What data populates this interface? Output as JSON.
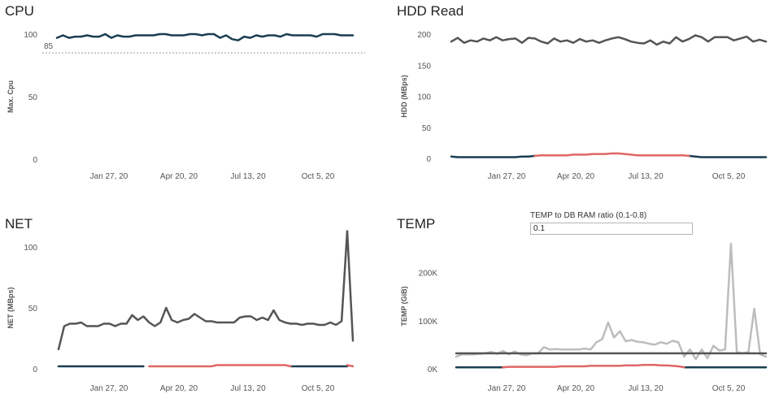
{
  "colors": {
    "navy": "#1a3d52",
    "gray": "#555555",
    "red": "#e06666",
    "lightgray": "#bdbdbd",
    "ref": "#999999"
  },
  "parameter": {
    "label": "TEMP to DB RAM ratio (0.1-0.8)",
    "value": "0.1"
  },
  "chart_data": [
    {
      "type": "line",
      "title": "CPU",
      "ylabel": "Max. Cpu",
      "ylim": [
        0,
        100
      ],
      "yticks": [
        "100",
        "50",
        "0"
      ],
      "xticks": [
        "Jan 27, 20",
        "Apr 20, 20",
        "Jul 13, 20",
        "Oct 5, 20"
      ],
      "reference_line": {
        "value": 85,
        "label": "85"
      },
      "series": [
        {
          "color": "navy",
          "values": [
            97,
            99,
            97,
            98,
            98,
            99,
            98,
            98,
            100,
            97,
            99,
            98,
            98,
            99,
            99,
            99,
            99,
            100,
            100,
            99,
            99,
            99,
            100,
            100,
            99,
            100,
            100,
            97,
            99,
            96,
            95,
            98,
            97,
            99,
            98,
            99,
            99,
            98,
            100,
            99,
            99,
            99,
            99,
            98,
            100,
            100,
            100,
            99,
            99,
            99
          ]
        }
      ]
    },
    {
      "type": "line",
      "title": "HDD Read",
      "ylabel": "HDD (MBps)",
      "ylim": [
        0,
        200
      ],
      "yticks": [
        "200",
        "150",
        "100",
        "50",
        "0"
      ],
      "xticks": [
        "Jan 27, 20",
        "Apr 20, 20",
        "Jul 13, 20",
        "Oct 5, 20"
      ],
      "series": [
        {
          "color": "gray",
          "values": [
            188,
            194,
            186,
            190,
            188,
            193,
            190,
            195,
            190,
            192,
            193,
            186,
            194,
            193,
            188,
            185,
            193,
            188,
            190,
            186,
            192,
            188,
            190,
            186,
            190,
            193,
            195,
            192,
            188,
            186,
            185,
            190,
            183,
            188,
            185,
            195,
            188,
            192,
            198,
            195,
            188,
            195,
            195,
            195,
            190,
            193,
            196,
            188,
            191,
            188
          ]
        },
        {
          "color": "navy",
          "values": [
            3,
            2,
            2,
            2,
            2,
            2,
            2,
            2,
            2,
            2,
            2,
            3,
            3,
            4,
            null,
            null,
            null,
            null,
            null,
            null,
            null,
            null,
            null,
            null,
            null,
            null,
            null,
            null,
            null,
            null,
            null,
            null,
            null,
            null,
            null,
            null,
            null,
            4,
            3,
            2,
            2,
            2,
            2,
            2,
            2,
            2,
            2,
            2,
            2,
            2
          ]
        },
        {
          "color": "red",
          "values": [
            null,
            null,
            null,
            null,
            null,
            null,
            null,
            null,
            null,
            null,
            null,
            null,
            null,
            4,
            5,
            5,
            5,
            5,
            5,
            6,
            6,
            6,
            7,
            7,
            7,
            8,
            8,
            7,
            6,
            5,
            5,
            5,
            5,
            5,
            5,
            5,
            5,
            4,
            null,
            null,
            null,
            null,
            null,
            null,
            null,
            null,
            null,
            null,
            null,
            null
          ]
        }
      ]
    },
    {
      "type": "line",
      "title": "NET",
      "ylabel": "NET (MBps)",
      "ylim": [
        0,
        100
      ],
      "yticks": [
        "100",
        "50",
        "0"
      ],
      "xticks": [
        "Jan 27, 20",
        "Apr 20, 20",
        "Jul 13, 20",
        "Oct 5, 20"
      ],
      "series": [
        {
          "color": "gray",
          "values": [
            16,
            35,
            37,
            37,
            38,
            35,
            35,
            35,
            37,
            37,
            35,
            37,
            37,
            44,
            40,
            43,
            38,
            35,
            38,
            50,
            40,
            38,
            40,
            41,
            45,
            42,
            39,
            39,
            38,
            38,
            38,
            38,
            42,
            43,
            43,
            40,
            42,
            40,
            48,
            40,
            38,
            37,
            37,
            36,
            37,
            37,
            36,
            36,
            38,
            36,
            39,
            113,
            23
          ]
        },
        {
          "color": "navy",
          "values": [
            2,
            2,
            2,
            2,
            2,
            2,
            2,
            2,
            2,
            2,
            2,
            2,
            2,
            2,
            2,
            2,
            null,
            null,
            null,
            null,
            null,
            null,
            null,
            null,
            null,
            null,
            null,
            null,
            null,
            null,
            null,
            null,
            null,
            null,
            null,
            null,
            null,
            null,
            null,
            null,
            null,
            2,
            2,
            2,
            2,
            2,
            2,
            2,
            2,
            2,
            2,
            2,
            null
          ]
        },
        {
          "color": "red",
          "values": [
            null,
            null,
            null,
            null,
            null,
            null,
            null,
            null,
            null,
            null,
            null,
            null,
            null,
            null,
            null,
            null,
            2,
            2,
            2,
            2,
            2,
            2,
            2,
            2,
            2,
            2,
            2,
            2,
            3,
            3,
            3,
            3,
            3,
            3,
            3,
            3,
            3,
            3,
            3,
            3,
            3,
            2,
            null,
            null,
            null,
            null,
            null,
            null,
            null,
            null,
            null,
            3,
            2
          ]
        }
      ]
    },
    {
      "type": "line",
      "title": "TEMP",
      "ylabel": "TEMP (GiB)",
      "ylim": [
        0,
        260000
      ],
      "yticks": [
        "200K",
        "100K",
        "0K"
      ],
      "xticks": [
        "Jan 27, 20",
        "Apr 20, 20",
        "Jul 13, 20",
        "Oct 5, 20"
      ],
      "series": [
        {
          "color": "lightgray",
          "values": [
            25000,
            30000,
            30000,
            30000,
            31000,
            32000,
            35000,
            31000,
            37000,
            30000,
            36000,
            30000,
            28000,
            32000,
            32000,
            45000,
            40000,
            41000,
            40000,
            40000,
            40000,
            40000,
            42000,
            40000,
            55000,
            62000,
            96000,
            65000,
            78000,
            57000,
            60000,
            56000,
            55000,
            52000,
            50000,
            55000,
            52000,
            58000,
            55000,
            25000,
            40000,
            20000,
            40000,
            22000,
            48000,
            38000,
            40000,
            260000,
            35000,
            32000,
            35000,
            125000,
            30000,
            25000
          ]
        },
        {
          "color": "gray",
          "values": [
            32000,
            32000,
            32000,
            32000,
            32000,
            32000,
            32000,
            32000,
            32000,
            32000,
            32000,
            32000,
            32000,
            32000,
            32000,
            32000,
            32000,
            32000,
            32000,
            32000,
            32000,
            32000,
            32000,
            32000,
            32000,
            32000,
            32000,
            32000,
            32000,
            32000,
            32000,
            32000,
            32000,
            32000,
            32000,
            32000,
            32000,
            32000,
            32000,
            32000,
            32000,
            32000,
            32000,
            32000,
            32000,
            32000,
            32000,
            32000,
            32000,
            32000,
            32000,
            32000,
            32000,
            32000
          ]
        },
        {
          "color": "navy",
          "values": [
            3000,
            3000,
            3000,
            3000,
            3000,
            3000,
            3000,
            3000,
            3000,
            null,
            null,
            null,
            null,
            null,
            null,
            null,
            null,
            null,
            null,
            null,
            null,
            null,
            null,
            null,
            null,
            null,
            null,
            null,
            null,
            null,
            null,
            null,
            null,
            null,
            null,
            null,
            null,
            null,
            null,
            3000,
            3000,
            3000,
            3000,
            3000,
            3000,
            3000,
            3000,
            3000,
            3000,
            3000,
            3000,
            3000,
            3000,
            3000
          ]
        },
        {
          "color": "red",
          "values": [
            null,
            null,
            null,
            null,
            null,
            null,
            null,
            null,
            3000,
            4000,
            4000,
            4000,
            4000,
            4000,
            4000,
            4000,
            4000,
            4000,
            5000,
            5000,
            5000,
            5000,
            5000,
            6000,
            6000,
            6000,
            6000,
            6000,
            6000,
            7000,
            7000,
            7000,
            8000,
            8000,
            8000,
            7000,
            7000,
            6000,
            5000,
            3000,
            null,
            null,
            null,
            null,
            null,
            null,
            null,
            null,
            null,
            null,
            null,
            null,
            null,
            null
          ]
        }
      ]
    }
  ]
}
